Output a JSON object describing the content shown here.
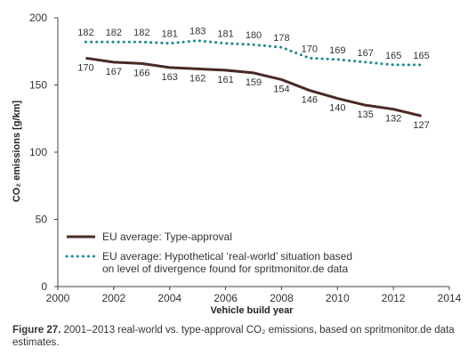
{
  "chart_data": {
    "type": "line",
    "ylabel": "CO₂ emissions [g/km]",
    "xlabel": "Vehicle build year",
    "xlim": [
      2000,
      2014
    ],
    "ylim": [
      0,
      200
    ],
    "xticks": [
      2000,
      2002,
      2004,
      2006,
      2008,
      2010,
      2012,
      2014
    ],
    "yticks": [
      0,
      50,
      100,
      150,
      200
    ],
    "grid": false,
    "legend_position": "bottom-left",
    "x": [
      2001,
      2002,
      2003,
      2004,
      2005,
      2006,
      2007,
      2008,
      2009,
      2010,
      2011,
      2012,
      2013
    ],
    "series": [
      {
        "name": "EU average: Type-approval",
        "style": "solid",
        "color": "#4a2a24",
        "values": [
          170,
          167,
          166,
          163,
          162,
          161,
          159,
          154,
          146,
          140,
          135,
          132,
          127
        ]
      },
      {
        "name": "EU average: Hypothetical ‘real-world’ situation based on level of divergence found for spritmonitor.de data",
        "legend_lines": [
          "EU average: Hypothetical ‘real-world’ situation based",
          "on level of divergence found for spritmonitor.de data"
        ],
        "style": "dotted",
        "color": "#1a8a8c",
        "values": [
          182,
          182,
          182,
          181,
          183,
          181,
          180,
          178,
          170,
          169,
          167,
          165,
          165
        ]
      }
    ]
  },
  "caption": {
    "label": "Figure 27.",
    "text": " 2001–2013 real-world vs. type-approval CO₂ emissions, based on spritmonitor.de data estimates."
  }
}
